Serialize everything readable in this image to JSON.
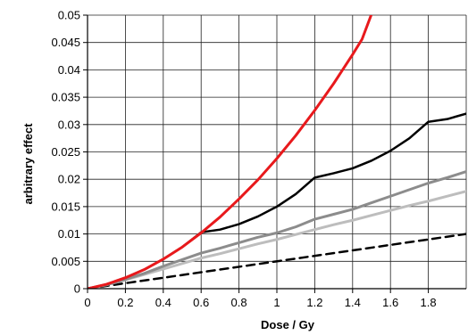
{
  "chart_data": {
    "type": "line",
    "title": "",
    "xlabel": "Dose / Gy",
    "ylabel": "arbitrary effect",
    "xlim": [
      0,
      2.0
    ],
    "ylim": [
      0,
      0.05
    ],
    "grid": true,
    "x_ticks": [
      0,
      0.2,
      0.4,
      0.6,
      0.8,
      1,
      1.2,
      1.4,
      1.6,
      1.8
    ],
    "x_tick_labels": [
      "0",
      "0.2",
      "0.4",
      "0.6",
      "0.8",
      "1",
      "1.2",
      "1.4",
      "1.6",
      "1.8"
    ],
    "y_ticks": [
      0,
      0.005,
      0.01,
      0.015,
      0.02,
      0.025,
      0.03,
      0.035,
      0.04,
      0.045,
      0.05
    ],
    "y_tick_labels": [
      "0",
      "0.005",
      "0.01",
      "0.015",
      "0.02",
      "0.025",
      "0.03",
      "0.035",
      "0.04",
      "0.045",
      "0.05"
    ],
    "series": [
      {
        "color": "#e8191c",
        "style": "solid",
        "width": 3,
        "x": [
          0,
          0.1,
          0.2,
          0.3,
          0.4,
          0.5,
          0.6,
          0.7,
          0.8,
          0.9,
          1.0,
          1.1,
          1.2,
          1.3,
          1.4,
          1.45,
          1.5
        ],
        "y": [
          0,
          0.0008,
          0.002,
          0.0035,
          0.0054,
          0.0076,
          0.0102,
          0.0131,
          0.0164,
          0.0199,
          0.0238,
          0.028,
          0.0326,
          0.0375,
          0.0428,
          0.0456,
          0.0502
        ]
      },
      {
        "color": "#000000",
        "style": "solid",
        "width": 2.5,
        "x": [
          0,
          0.1,
          0.2,
          0.3,
          0.4,
          0.5,
          0.6,
          0.7,
          0.8,
          0.9,
          1.0,
          1.1,
          1.2,
          1.3,
          1.4,
          1.5,
          1.6,
          1.7,
          1.8,
          1.9,
          2.0
        ],
        "y": [
          0,
          0.0008,
          0.002,
          0.0035,
          0.0054,
          0.0076,
          0.0103,
          0.0108,
          0.0118,
          0.0132,
          0.015,
          0.0173,
          0.0203,
          0.0211,
          0.022,
          0.0234,
          0.0252,
          0.0275,
          0.0305,
          0.031,
          0.032
        ]
      },
      {
        "color": "#8c8c8c",
        "style": "solid",
        "width": 3,
        "x": [
          0,
          0.1,
          0.2,
          0.3,
          0.4,
          0.5,
          0.6,
          0.7,
          0.8,
          0.9,
          1.0,
          1.1,
          1.2,
          1.3,
          1.4,
          1.5,
          1.6,
          1.7,
          1.8,
          1.9,
          2.0
        ],
        "y": [
          0,
          0.0007,
          0.0017,
          0.0028,
          0.0041,
          0.0053,
          0.0065,
          0.0074,
          0.0084,
          0.0094,
          0.0102,
          0.0113,
          0.0127,
          0.0136,
          0.0145,
          0.0157,
          0.0169,
          0.0181,
          0.0193,
          0.0203,
          0.0214
        ]
      },
      {
        "color": "#bdbdbd",
        "style": "solid",
        "width": 3,
        "x": [
          0,
          0.1,
          0.2,
          0.3,
          0.4,
          0.5,
          0.6,
          0.7,
          0.8,
          0.9,
          1.0,
          1.1,
          1.2,
          1.3,
          1.4,
          1.5,
          1.6,
          1.7,
          1.8,
          1.9,
          2.0
        ],
        "y": [
          0,
          0.0007,
          0.0016,
          0.0026,
          0.0036,
          0.0046,
          0.0056,
          0.0064,
          0.0073,
          0.0082,
          0.009,
          0.0099,
          0.0108,
          0.0117,
          0.0125,
          0.0134,
          0.0143,
          0.0152,
          0.016,
          0.0169,
          0.0178
        ]
      },
      {
        "color": "#000000",
        "style": "dashed",
        "width": 2.5,
        "x": [
          0,
          2.0
        ],
        "y": [
          0,
          0.01
        ]
      }
    ]
  }
}
